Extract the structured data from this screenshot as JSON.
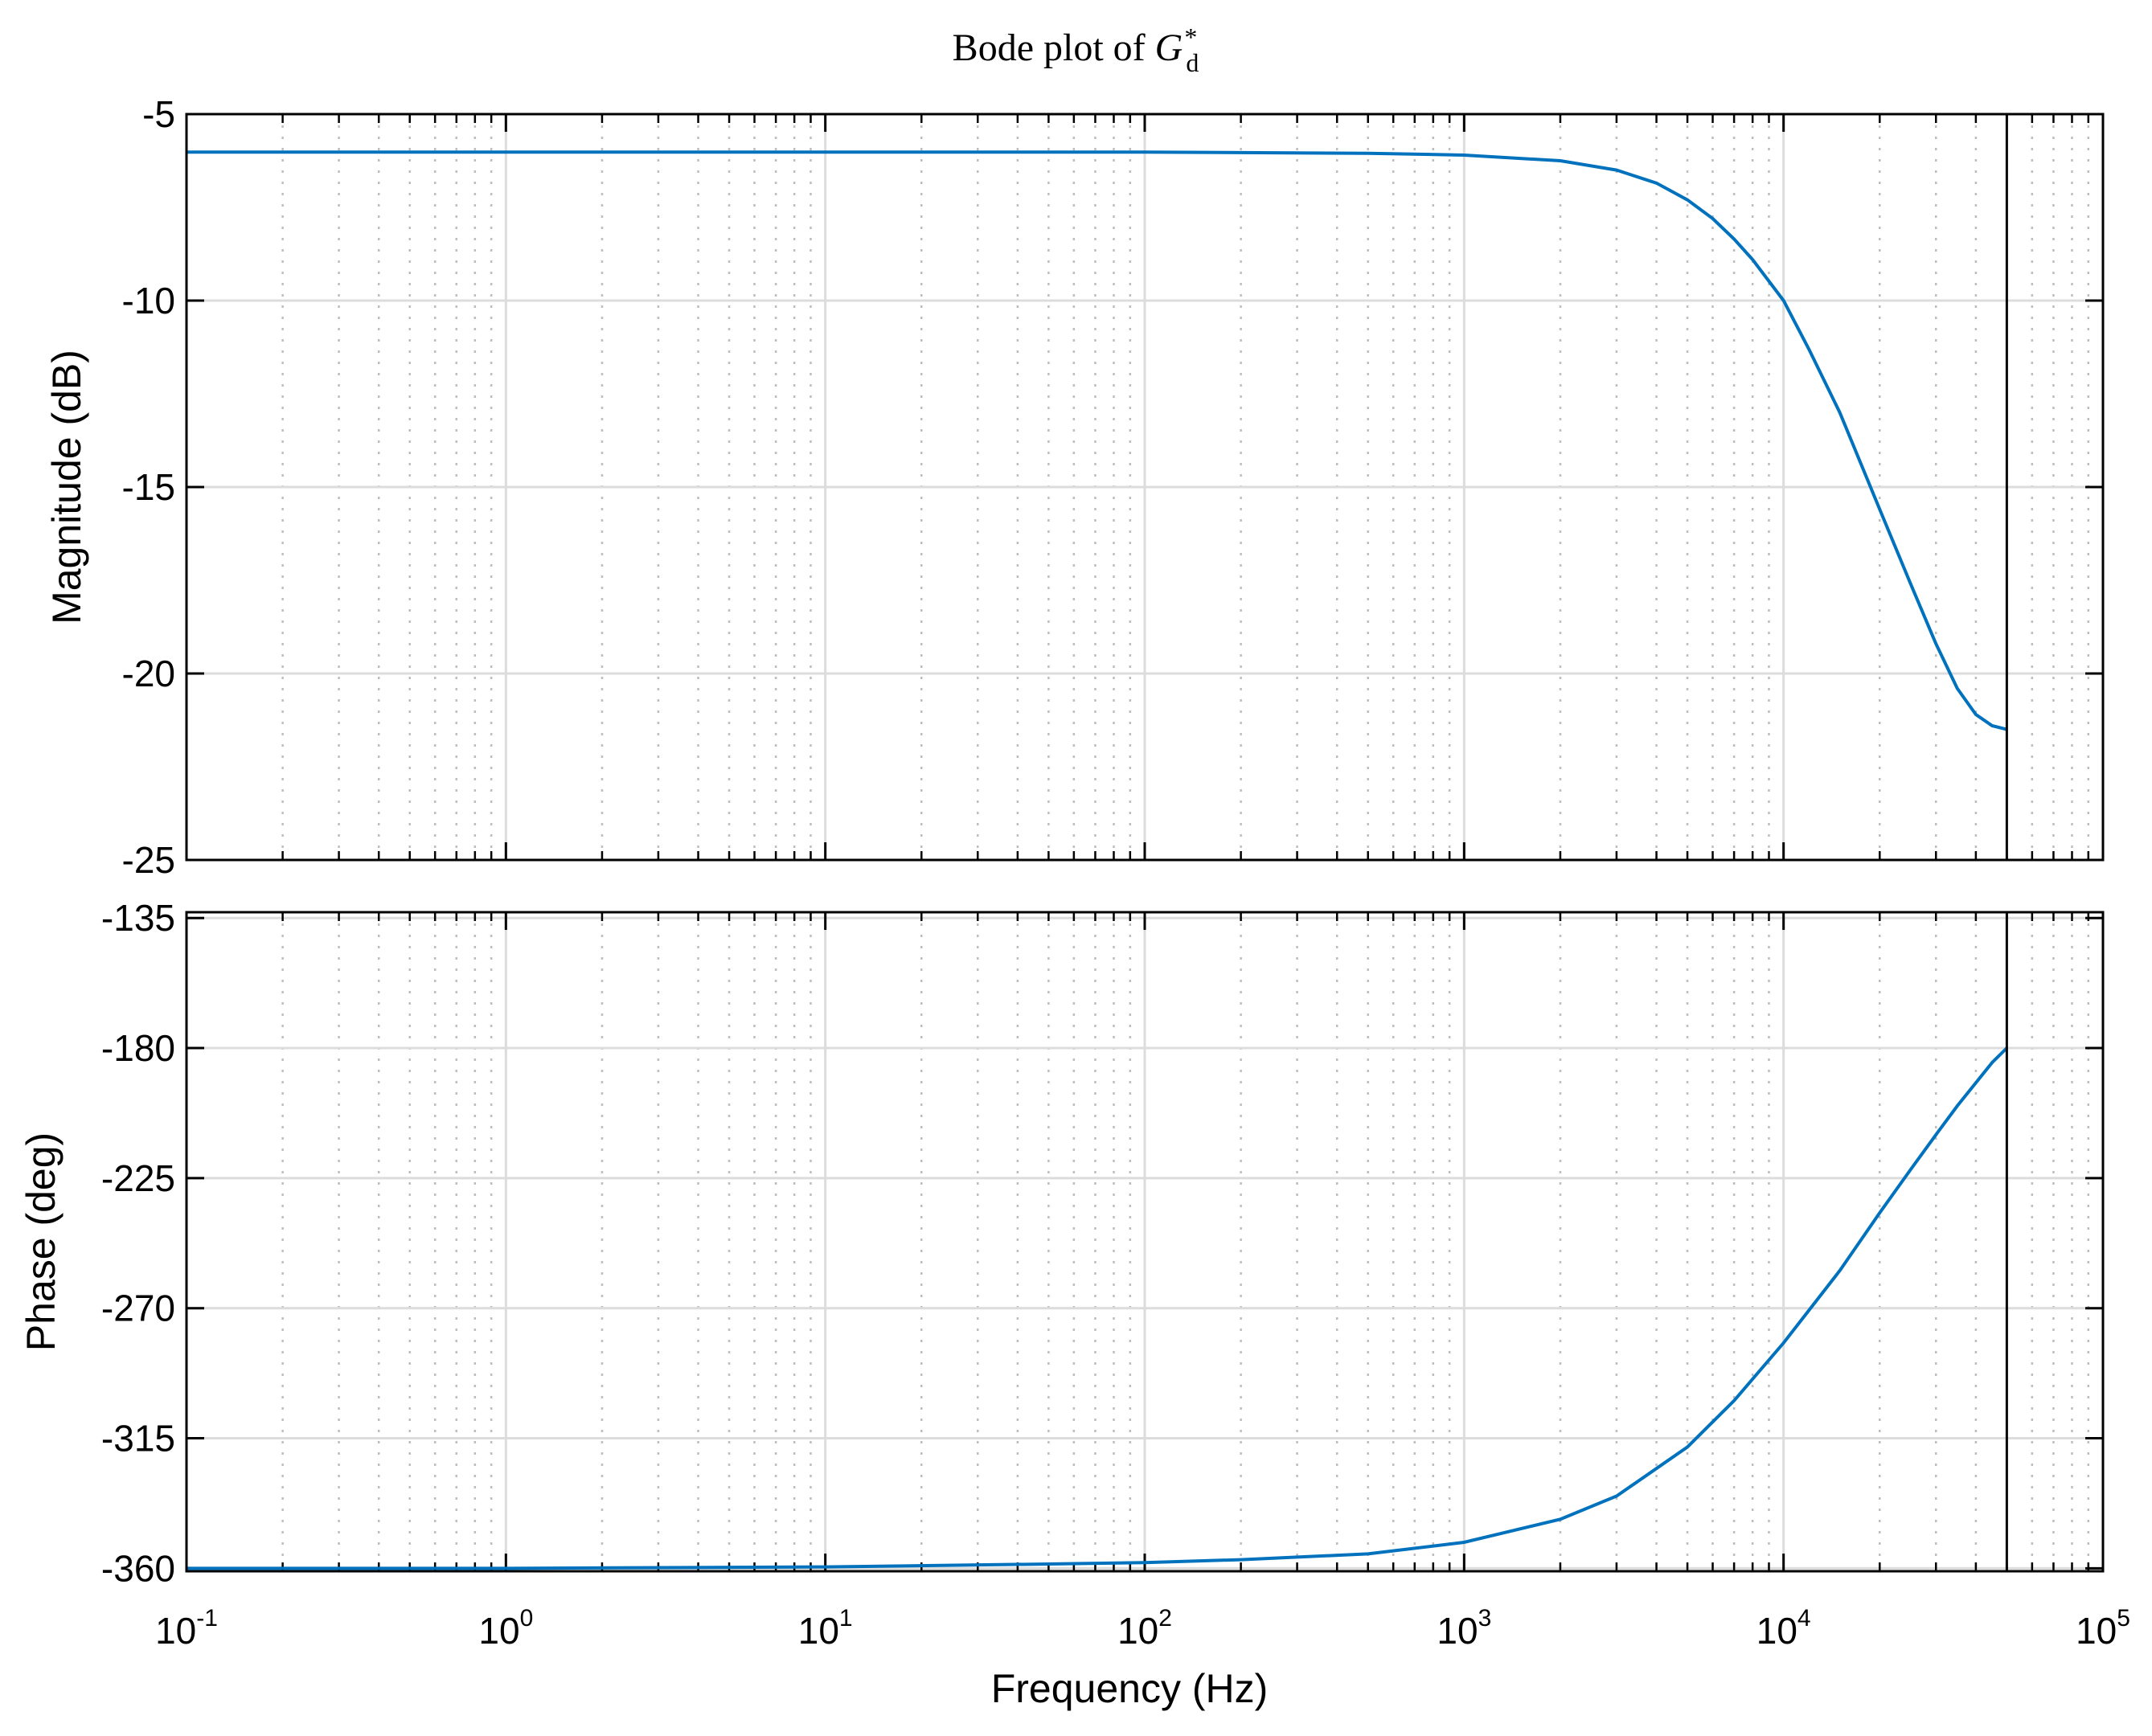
{
  "chart_data": {
    "type": "line",
    "title": {
      "prefix": "Bode plot of ",
      "symbol": "G",
      "subscript": "d",
      "superscript": "*"
    },
    "xscale": "log",
    "xlabel": "Frequency  (Hz)",
    "xlim": [
      0.1,
      100000
    ],
    "x_ticks": [
      {
        "base": "10",
        "exp": "-1",
        "value": 0.1
      },
      {
        "base": "10",
        "exp": "0",
        "value": 1
      },
      {
        "base": "10",
        "exp": "1",
        "value": 10
      },
      {
        "base": "10",
        "exp": "2",
        "value": 100
      },
      {
        "base": "10",
        "exp": "3",
        "value": 1000
      },
      {
        "base": "10",
        "exp": "4",
        "value": 10000
      },
      {
        "base": "10",
        "exp": "5",
        "value": 100000
      }
    ],
    "grid": "major solid, minor dotted",
    "nyquist_marker_hz": 50000,
    "panels": [
      {
        "name": "magnitude",
        "ylabel": "Magnitude (dB)",
        "ylim": [
          -25,
          -5
        ],
        "yticks": [
          -5,
          -10,
          -15,
          -20,
          -25
        ],
        "ytick_labels": [
          "-5",
          "-10",
          "-15",
          "-20",
          "-25"
        ],
        "series": [
          {
            "color": "#0072BD",
            "x": [
              0.1,
              1,
              10,
              100,
              500,
              1000,
              2000,
              3000,
              4000,
              5000,
              6000,
              7000,
              8000,
              10000,
              12000,
              15000,
              20000,
              25000,
              30000,
              35000,
              40000,
              45000,
              50000
            ],
            "y": [
              -6.02,
              -6.02,
              -6.02,
              -6.02,
              -6.05,
              -6.1,
              -6.25,
              -6.5,
              -6.85,
              -7.3,
              -7.8,
              -8.35,
              -8.9,
              -10.0,
              -11.3,
              -13.0,
              -15.6,
              -17.6,
              -19.2,
              -20.4,
              -21.1,
              -21.4,
              -21.5
            ]
          }
        ]
      },
      {
        "name": "phase",
        "ylabel": "Phase (deg)",
        "ylim": [
          -361,
          -133
        ],
        "yticks": [
          -135,
          -180,
          -225,
          -270,
          -315,
          -360
        ],
        "ytick_labels": [
          "-135",
          "-180",
          "-225",
          "-270",
          "-315",
          "-360"
        ],
        "series": [
          {
            "color": "#0072BD",
            "x": [
              0.1,
              1,
              10,
              50,
              100,
              200,
              500,
              1000,
              2000,
              3000,
              5000,
              7000,
              10000,
              15000,
              20000,
              25000,
              30000,
              35000,
              40000,
              45000,
              50000
            ],
            "y": [
              -360,
              -360,
              -359.5,
              -358.5,
              -358,
              -357,
              -355,
              -351,
              -343,
              -335,
              -318,
              -302,
              -282,
              -257,
              -237,
              -222,
              -210,
              -200,
              -192,
              -185,
              -180
            ]
          }
        ]
      }
    ]
  }
}
